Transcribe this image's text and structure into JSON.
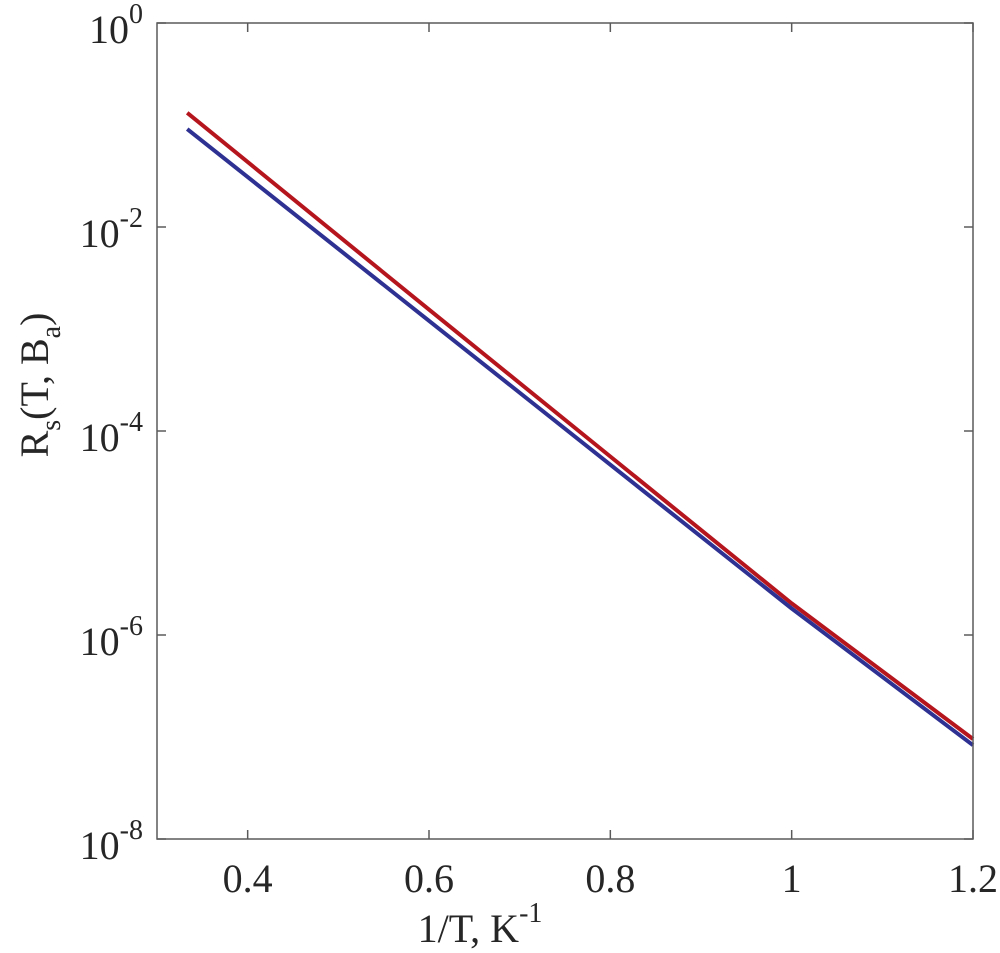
{
  "chart_data": {
    "type": "line",
    "title": "",
    "xlabel": "1/T, K^-1",
    "ylabel": "R_s(T, B_a)",
    "xlabel_parts": {
      "base": "1/T, K",
      "sup": "-1"
    },
    "ylabel_parts": {
      "R": "R",
      "sub_s": "s",
      "mid": "(T, B",
      "sub_a": "a",
      "close": ")"
    },
    "xlim": [
      0.3,
      1.2
    ],
    "ylim": [
      1e-08,
      1
    ],
    "yscale": "log",
    "grid": false,
    "legend": null,
    "x_ticks": [
      {
        "value": 0.4,
        "label": "0.4"
      },
      {
        "value": 0.6,
        "label": "0.6"
      },
      {
        "value": 0.8,
        "label": "0.8"
      },
      {
        "value": 1.0,
        "label": "1"
      },
      {
        "value": 1.2,
        "label": "1.2"
      }
    ],
    "y_ticks": [
      {
        "exp": 0,
        "base": "10",
        "sup": "0"
      },
      {
        "exp": -2,
        "base": "10",
        "sup": "-2"
      },
      {
        "exp": -4,
        "base": "10",
        "sup": "-4"
      },
      {
        "exp": -6,
        "base": "10",
        "sup": "-6"
      },
      {
        "exp": -8,
        "base": "10",
        "sup": "-8"
      }
    ],
    "series": [
      {
        "name": "red curve",
        "color": "#b5161e",
        "x": [
          0.3333,
          0.6,
          0.8,
          1.0,
          1.2
        ],
        "log10_y": [
          -0.88,
          -2.81,
          -4.25,
          -5.69,
          -7.02
        ],
        "y": [
          0.132,
          0.00155,
          5.6e-05,
          2e-06,
          9.5e-08
        ]
      },
      {
        "name": "blue curve",
        "color": "#2e3192",
        "x": [
          0.3333,
          0.6,
          0.8,
          1.0,
          1.2
        ],
        "log10_y": [
          -1.04,
          -2.92,
          -4.33,
          -5.74,
          -7.08
        ],
        "y": [
          0.091,
          0.0012,
          4.7e-05,
          1.8e-06,
          8.3e-08
        ]
      }
    ]
  },
  "colors": {
    "axis": "#5a5a5a",
    "text": "#262626",
    "background": "#ffffff"
  }
}
